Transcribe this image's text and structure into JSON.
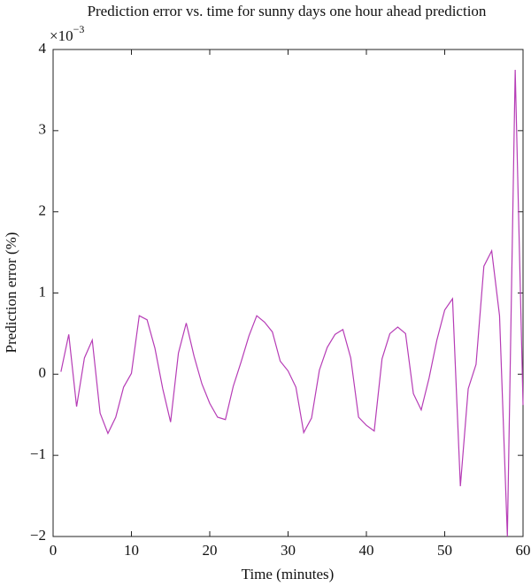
{
  "chart_data": {
    "type": "line",
    "title": "Prediction error vs. time for sunny days one hour ahead prediction",
    "xlabel": "Time (minutes)",
    "ylabel": "Prediction error (%)",
    "y_multiplier": {
      "base": "×10",
      "power": "−3"
    },
    "x": [
      1,
      2,
      3,
      4,
      5,
      6,
      7,
      8,
      9,
      10,
      11,
      12,
      13,
      14,
      15,
      16,
      17,
      18,
      19,
      20,
      21,
      22,
      23,
      24,
      25,
      26,
      27,
      28,
      29,
      30,
      31,
      32,
      33,
      34,
      35,
      36,
      37,
      38,
      39,
      40,
      41,
      42,
      43,
      44,
      45,
      46,
      47,
      48,
      49,
      50,
      51,
      52,
      53,
      54,
      55,
      56,
      57,
      58,
      59,
      60
    ],
    "series": [
      {
        "color": "#b63cb6",
        "values": [
          0.03,
          0.49,
          -0.4,
          0.2,
          0.42,
          -0.48,
          -0.73,
          -0.53,
          -0.16,
          0.01,
          0.72,
          0.67,
          0.32,
          -0.18,
          -0.59,
          0.26,
          0.63,
          0.22,
          -0.12,
          -0.36,
          -0.53,
          -0.56,
          -0.15,
          0.15,
          0.47,
          0.72,
          0.64,
          0.52,
          0.16,
          0.04,
          -0.16,
          -0.72,
          -0.54,
          0.05,
          0.33,
          0.49,
          0.55,
          0.2,
          -0.53,
          -0.63,
          -0.7,
          0.19,
          0.5,
          0.58,
          0.5,
          -0.24,
          -0.44,
          -0.05,
          0.42,
          0.79,
          0.93,
          -1.38,
          -0.18,
          0.12,
          1.33,
          1.52,
          0.72,
          -2.0,
          3.75,
          -0.38
        ]
      }
    ],
    "xlim": [
      0,
      60
    ],
    "xticks": [
      0,
      10,
      20,
      30,
      40,
      50,
      60
    ],
    "ylim": [
      -2,
      4
    ],
    "yticks": [
      {
        "value": -2,
        "label": "−2"
      },
      {
        "value": -1,
        "label": "−1"
      },
      0,
      1,
      2,
      3,
      4
    ]
  }
}
